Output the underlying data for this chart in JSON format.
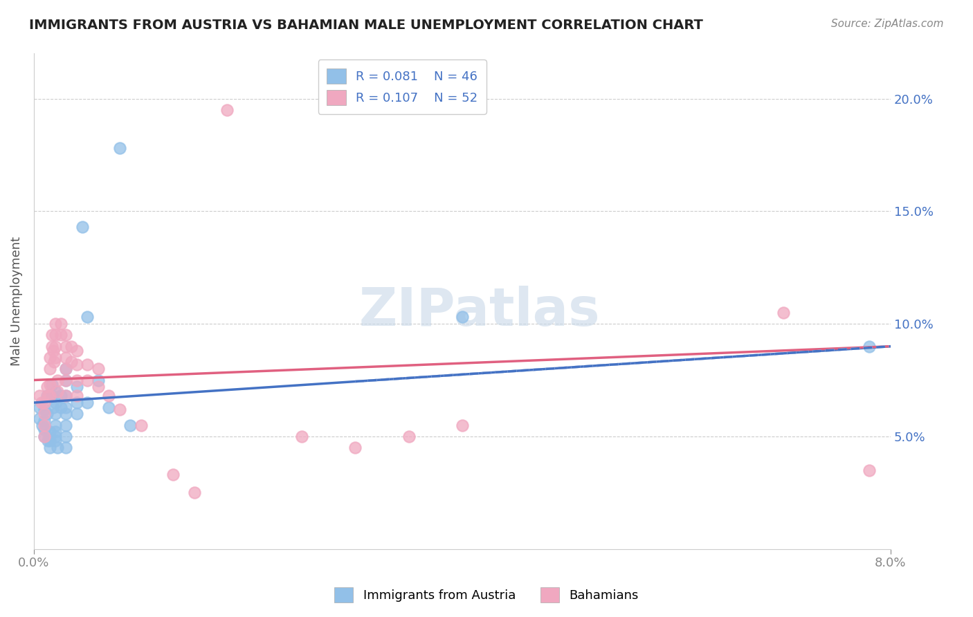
{
  "title": "IMMIGRANTS FROM AUSTRIA VS BAHAMIAN MALE UNEMPLOYMENT CORRELATION CHART",
  "source": "Source: ZipAtlas.com",
  "ylabel": "Male Unemployment",
  "legend_blue_r": "R = 0.081",
  "legend_blue_n": "N = 46",
  "legend_pink_r": "R = 0.107",
  "legend_pink_n": "N = 52",
  "xlim": [
    0.0,
    0.08
  ],
  "ylim": [
    0.0,
    0.22
  ],
  "yticks": [
    0.05,
    0.1,
    0.15,
    0.2
  ],
  "ytick_labels": [
    "5.0%",
    "10.0%",
    "15.0%",
    "20.0%"
  ],
  "blue_color": "#92c0e8",
  "pink_color": "#f0a8c0",
  "blue_line_color": "#4472c4",
  "pink_line_color": "#e06080",
  "watermark": "ZIPatlas",
  "blue_line": [
    0.065,
    0.09
  ],
  "pink_line": [
    0.075,
    0.09
  ],
  "blue_scatter": [
    [
      0.0005,
      0.063
    ],
    [
      0.0005,
      0.058
    ],
    [
      0.0008,
      0.055
    ],
    [
      0.001,
      0.062
    ],
    [
      0.001,
      0.057
    ],
    [
      0.001,
      0.053
    ],
    [
      0.001,
      0.05
    ],
    [
      0.0012,
      0.068
    ],
    [
      0.0012,
      0.06
    ],
    [
      0.0013,
      0.048
    ],
    [
      0.0015,
      0.052
    ],
    [
      0.0015,
      0.048
    ],
    [
      0.0015,
      0.045
    ],
    [
      0.0017,
      0.073
    ],
    [
      0.0017,
      0.068
    ],
    [
      0.0018,
      0.063
    ],
    [
      0.002,
      0.07
    ],
    [
      0.002,
      0.065
    ],
    [
      0.002,
      0.06
    ],
    [
      0.002,
      0.055
    ],
    [
      0.002,
      0.052
    ],
    [
      0.002,
      0.05
    ],
    [
      0.002,
      0.048
    ],
    [
      0.0022,
      0.045
    ],
    [
      0.0025,
      0.068
    ],
    [
      0.0025,
      0.063
    ],
    [
      0.003,
      0.08
    ],
    [
      0.003,
      0.075
    ],
    [
      0.003,
      0.068
    ],
    [
      0.003,
      0.063
    ],
    [
      0.003,
      0.06
    ],
    [
      0.003,
      0.055
    ],
    [
      0.003,
      0.05
    ],
    [
      0.003,
      0.045
    ],
    [
      0.004,
      0.072
    ],
    [
      0.004,
      0.065
    ],
    [
      0.004,
      0.06
    ],
    [
      0.0045,
      0.143
    ],
    [
      0.005,
      0.103
    ],
    [
      0.005,
      0.065
    ],
    [
      0.006,
      0.075
    ],
    [
      0.007,
      0.063
    ],
    [
      0.008,
      0.178
    ],
    [
      0.009,
      0.055
    ],
    [
      0.04,
      0.103
    ],
    [
      0.078,
      0.09
    ]
  ],
  "pink_scatter": [
    [
      0.0005,
      0.068
    ],
    [
      0.0007,
      0.065
    ],
    [
      0.001,
      0.065
    ],
    [
      0.001,
      0.06
    ],
    [
      0.001,
      0.055
    ],
    [
      0.001,
      0.05
    ],
    [
      0.0012,
      0.072
    ],
    [
      0.0013,
      0.068
    ],
    [
      0.0015,
      0.085
    ],
    [
      0.0015,
      0.08
    ],
    [
      0.0015,
      0.073
    ],
    [
      0.0015,
      0.068
    ],
    [
      0.0017,
      0.095
    ],
    [
      0.0017,
      0.09
    ],
    [
      0.0018,
      0.088
    ],
    [
      0.0019,
      0.083
    ],
    [
      0.002,
      0.1
    ],
    [
      0.002,
      0.095
    ],
    [
      0.002,
      0.09
    ],
    [
      0.002,
      0.085
    ],
    [
      0.0022,
      0.075
    ],
    [
      0.0022,
      0.07
    ],
    [
      0.0025,
      0.1
    ],
    [
      0.0025,
      0.095
    ],
    [
      0.003,
      0.095
    ],
    [
      0.003,
      0.09
    ],
    [
      0.003,
      0.085
    ],
    [
      0.003,
      0.08
    ],
    [
      0.003,
      0.075
    ],
    [
      0.003,
      0.068
    ],
    [
      0.0035,
      0.09
    ],
    [
      0.0035,
      0.083
    ],
    [
      0.004,
      0.088
    ],
    [
      0.004,
      0.082
    ],
    [
      0.004,
      0.075
    ],
    [
      0.004,
      0.068
    ],
    [
      0.005,
      0.082
    ],
    [
      0.005,
      0.075
    ],
    [
      0.006,
      0.08
    ],
    [
      0.006,
      0.072
    ],
    [
      0.007,
      0.068
    ],
    [
      0.008,
      0.062
    ],
    [
      0.01,
      0.055
    ],
    [
      0.013,
      0.033
    ],
    [
      0.015,
      0.025
    ],
    [
      0.018,
      0.195
    ],
    [
      0.025,
      0.05
    ],
    [
      0.03,
      0.045
    ],
    [
      0.035,
      0.05
    ],
    [
      0.04,
      0.055
    ],
    [
      0.07,
      0.105
    ],
    [
      0.078,
      0.035
    ]
  ]
}
